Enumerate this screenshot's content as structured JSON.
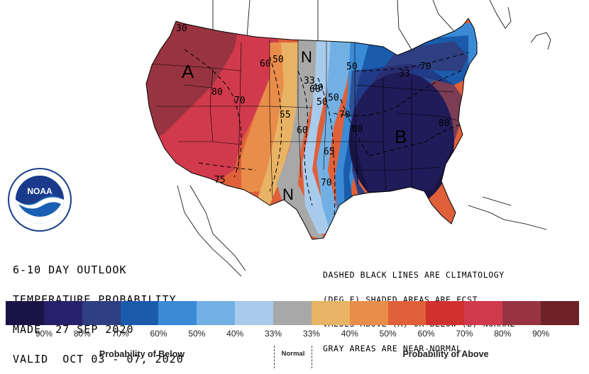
{
  "outlook": {
    "line1": "6-10 DAY OUTLOOK",
    "line2": "TEMPERATURE PROBABILITY",
    "line3": "MADE  27 SEP 2020",
    "line4": "VALID  OCT 03 - 07, 2020"
  },
  "notes": {
    "line1": "DASHED BLACK LINES ARE CLIMATOLOGY",
    "line2": "(DEG F) SHADED AREAS ARE FCST",
    "line3": "VALUES ABOVE (A) OR BELOW (B) NORMAL",
    "line4": "GRAY AREAS ARE NEAR-NORMAL"
  },
  "logo": {
    "text": "NOAA",
    "icon": "noaa-logo"
  },
  "map_labels": {
    "above": "A",
    "below": "B",
    "normal_north": "N",
    "normal_south": "N"
  },
  "climatology_labels": [
    "30",
    "60",
    "50",
    "33",
    "40",
    "50",
    "33",
    "50",
    "50",
    "60",
    "70",
    "80",
    "70",
    "55",
    "60",
    "65",
    "70",
    "75",
    "80",
    "80",
    "70"
  ],
  "legend": {
    "below_caption": "Probability of Below",
    "normal_caption": "Normal",
    "above_caption": "Probability of Above",
    "colors": [
      "#1a1446",
      "#26216a",
      "#2e3f82",
      "#1a5cab",
      "#3a8ad5",
      "#72b0e4",
      "#a8cbec",
      "#a8a8a8",
      "#e8b365",
      "#e98d4a",
      "#e0603a",
      "#d0302e",
      "#d13a4d",
      "#983440",
      "#6e2228"
    ],
    "ticks": [
      "90%",
      "80%",
      "70%",
      "60%",
      "50%",
      "40%",
      "33%",
      "33%",
      "40%",
      "50%",
      "60%",
      "70%",
      "80%",
      "90%"
    ]
  }
}
